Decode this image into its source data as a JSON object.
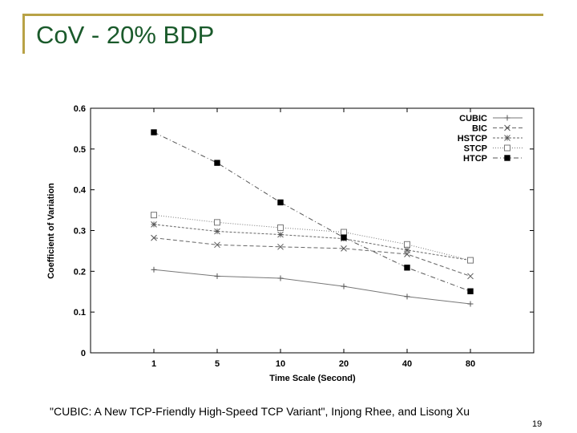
{
  "slide": {
    "title": "CoV - 20% BDP",
    "citation": "\"CUBIC: A New TCP-Friendly High-Speed TCP Variant\", Injong Rhee, and Lisong Xu",
    "page_number": "19",
    "accent_color": "#b8a246",
    "title_color": "#1a5a2b"
  },
  "chart_data": {
    "type": "line",
    "title": "",
    "xlabel": "Time Scale (Second)",
    "ylabel": "Coefficient of Variation",
    "categories": [
      "1",
      "5",
      "10",
      "20",
      "40",
      "80"
    ],
    "ylim": [
      0,
      0.6
    ],
    "yticks": [
      "0",
      "0.1",
      "0.2",
      "0.3",
      "0.4",
      "0.5",
      "0.6"
    ],
    "grid": false,
    "legend_position": "top-right",
    "series": [
      {
        "name": "CUBIC",
        "marker": "plus",
        "dash": "solid",
        "values": [
          0.204,
          0.188,
          0.183,
          0.163,
          0.138,
          0.12
        ]
      },
      {
        "name": "BIC",
        "marker": "x",
        "dash": "dashed",
        "values": [
          0.282,
          0.265,
          0.26,
          0.256,
          0.242,
          0.188
        ]
      },
      {
        "name": "HSTCP",
        "marker": "star",
        "dash": "dashed-fine",
        "values": [
          0.315,
          0.298,
          0.29,
          0.28,
          0.252,
          0.227
        ]
      },
      {
        "name": "STCP",
        "marker": "open-square",
        "dash": "dotted",
        "values": [
          0.338,
          0.32,
          0.307,
          0.296,
          0.266,
          0.227
        ]
      },
      {
        "name": "HTCP",
        "marker": "filled-square",
        "dash": "dash-dot",
        "values": [
          0.541,
          0.466,
          0.369,
          0.283,
          0.209,
          0.151
        ]
      }
    ]
  }
}
